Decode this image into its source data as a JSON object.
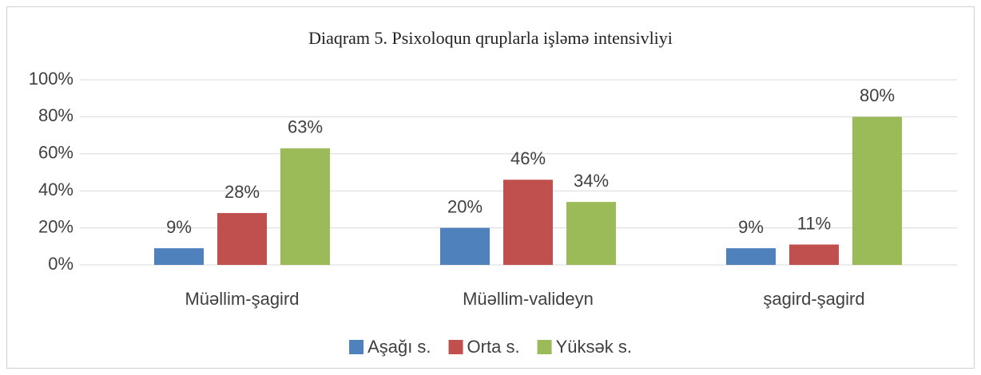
{
  "chart_data": {
    "type": "bar",
    "title": "Diaqram 5. Psixoloqun qruplarla işləmə intensivliyi",
    "categories": [
      "Müəllim-şagird",
      "Müəllim-valideyn",
      "şagird-şagird"
    ],
    "series": [
      {
        "name": "Aşağı s.",
        "color": "#4f81bd",
        "values": [
          9,
          20,
          9
        ],
        "value_labels": [
          "9%",
          "20%",
          "9%"
        ]
      },
      {
        "name": "Orta s.",
        "color": "#c0504d",
        "values": [
          28,
          46,
          11
        ],
        "value_labels": [
          "28%",
          "46%",
          "11%"
        ]
      },
      {
        "name": "Yüksək s.",
        "color": "#9bbb59",
        "values": [
          63,
          34,
          80
        ],
        "value_labels": [
          "63%",
          "34%",
          "80%"
        ]
      }
    ],
    "ylim": [
      0,
      100
    ],
    "yticks": [
      {
        "value": 0,
        "label": "0%"
      },
      {
        "value": 20,
        "label": "20%"
      },
      {
        "value": 40,
        "label": "40%"
      },
      {
        "value": 60,
        "label": "60%"
      },
      {
        "value": 80,
        "label": "80%"
      },
      {
        "value": 100,
        "label": "100%"
      }
    ],
    "grid": true,
    "legend": "bottom"
  }
}
